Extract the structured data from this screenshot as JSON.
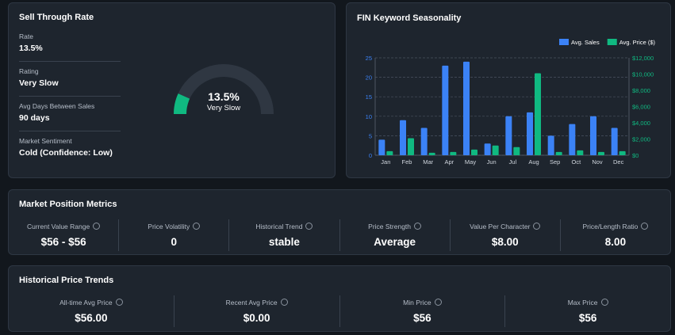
{
  "sell_through": {
    "title": "Sell Through Rate",
    "fields": [
      {
        "label": "Rate",
        "value": "13.5%"
      },
      {
        "label": "Rating",
        "value": "Very Slow"
      },
      {
        "label": "Avg Days Between Sales",
        "value": "90 days"
      },
      {
        "label": "Market Sentiment",
        "value": "Cold (Confidence: Low)"
      }
    ],
    "gauge": {
      "value": 13.5,
      "value_label": "13.5%",
      "caption": "Very Slow",
      "color": "#10b981"
    }
  },
  "chart_data": {
    "type": "bar",
    "title": "FIN Keyword Seasonality",
    "categories": [
      "Jan",
      "Feb",
      "Mar",
      "Apr",
      "May",
      "Jun",
      "Jul",
      "Aug",
      "Sep",
      "Oct",
      "Nov",
      "Dec"
    ],
    "series": [
      {
        "name": "Avg. Sales",
        "color": "#3b82f6",
        "values": [
          4,
          9,
          7,
          23,
          24,
          3,
          10,
          11,
          5,
          8,
          10,
          7
        ]
      },
      {
        "name": "Avg. Price ($)",
        "color": "#10b981",
        "axis": "y2",
        "values": [
          500,
          2100,
          300,
          400,
          700,
          1200,
          1000,
          10100,
          400,
          600,
          400,
          500
        ]
      }
    ],
    "ylim": [
      0,
      25
    ],
    "yticks": [
      0,
      5,
      10,
      15,
      20,
      25
    ],
    "y2lim": [
      0,
      12000
    ],
    "y2ticks": [
      {
        "value": 0,
        "label": "$0"
      },
      {
        "value": 2000,
        "label": "$2,000"
      },
      {
        "value": 4000,
        "label": "$4,000"
      },
      {
        "value": 6000,
        "label": "$6,000"
      },
      {
        "value": 8000,
        "label": "$8,000"
      },
      {
        "value": 10000,
        "label": "$10,000"
      },
      {
        "value": 12000,
        "label": "$12,000"
      }
    ],
    "grid": true,
    "legend": "top-right"
  },
  "market_position": {
    "title": "Market Position Metrics",
    "metrics": [
      {
        "label": "Current Value Range",
        "value": "$56 - $56"
      },
      {
        "label": "Price Volatility",
        "value": "0"
      },
      {
        "label": "Historical Trend",
        "value": "stable"
      },
      {
        "label": "Price Strength",
        "value": "Average"
      },
      {
        "label": "Value Per Character",
        "value": "$8.00"
      },
      {
        "label": "Price/Length Ratio",
        "value": "8.00"
      }
    ]
  },
  "price_trends": {
    "title": "Historical Price Trends",
    "metrics": [
      {
        "label": "All-time Avg Price",
        "value": "$56.00"
      },
      {
        "label": "Recent Avg Price",
        "value": "$0.00"
      },
      {
        "label": "Min Price",
        "value": "$56"
      },
      {
        "label": "Max Price",
        "value": "$56"
      }
    ]
  }
}
